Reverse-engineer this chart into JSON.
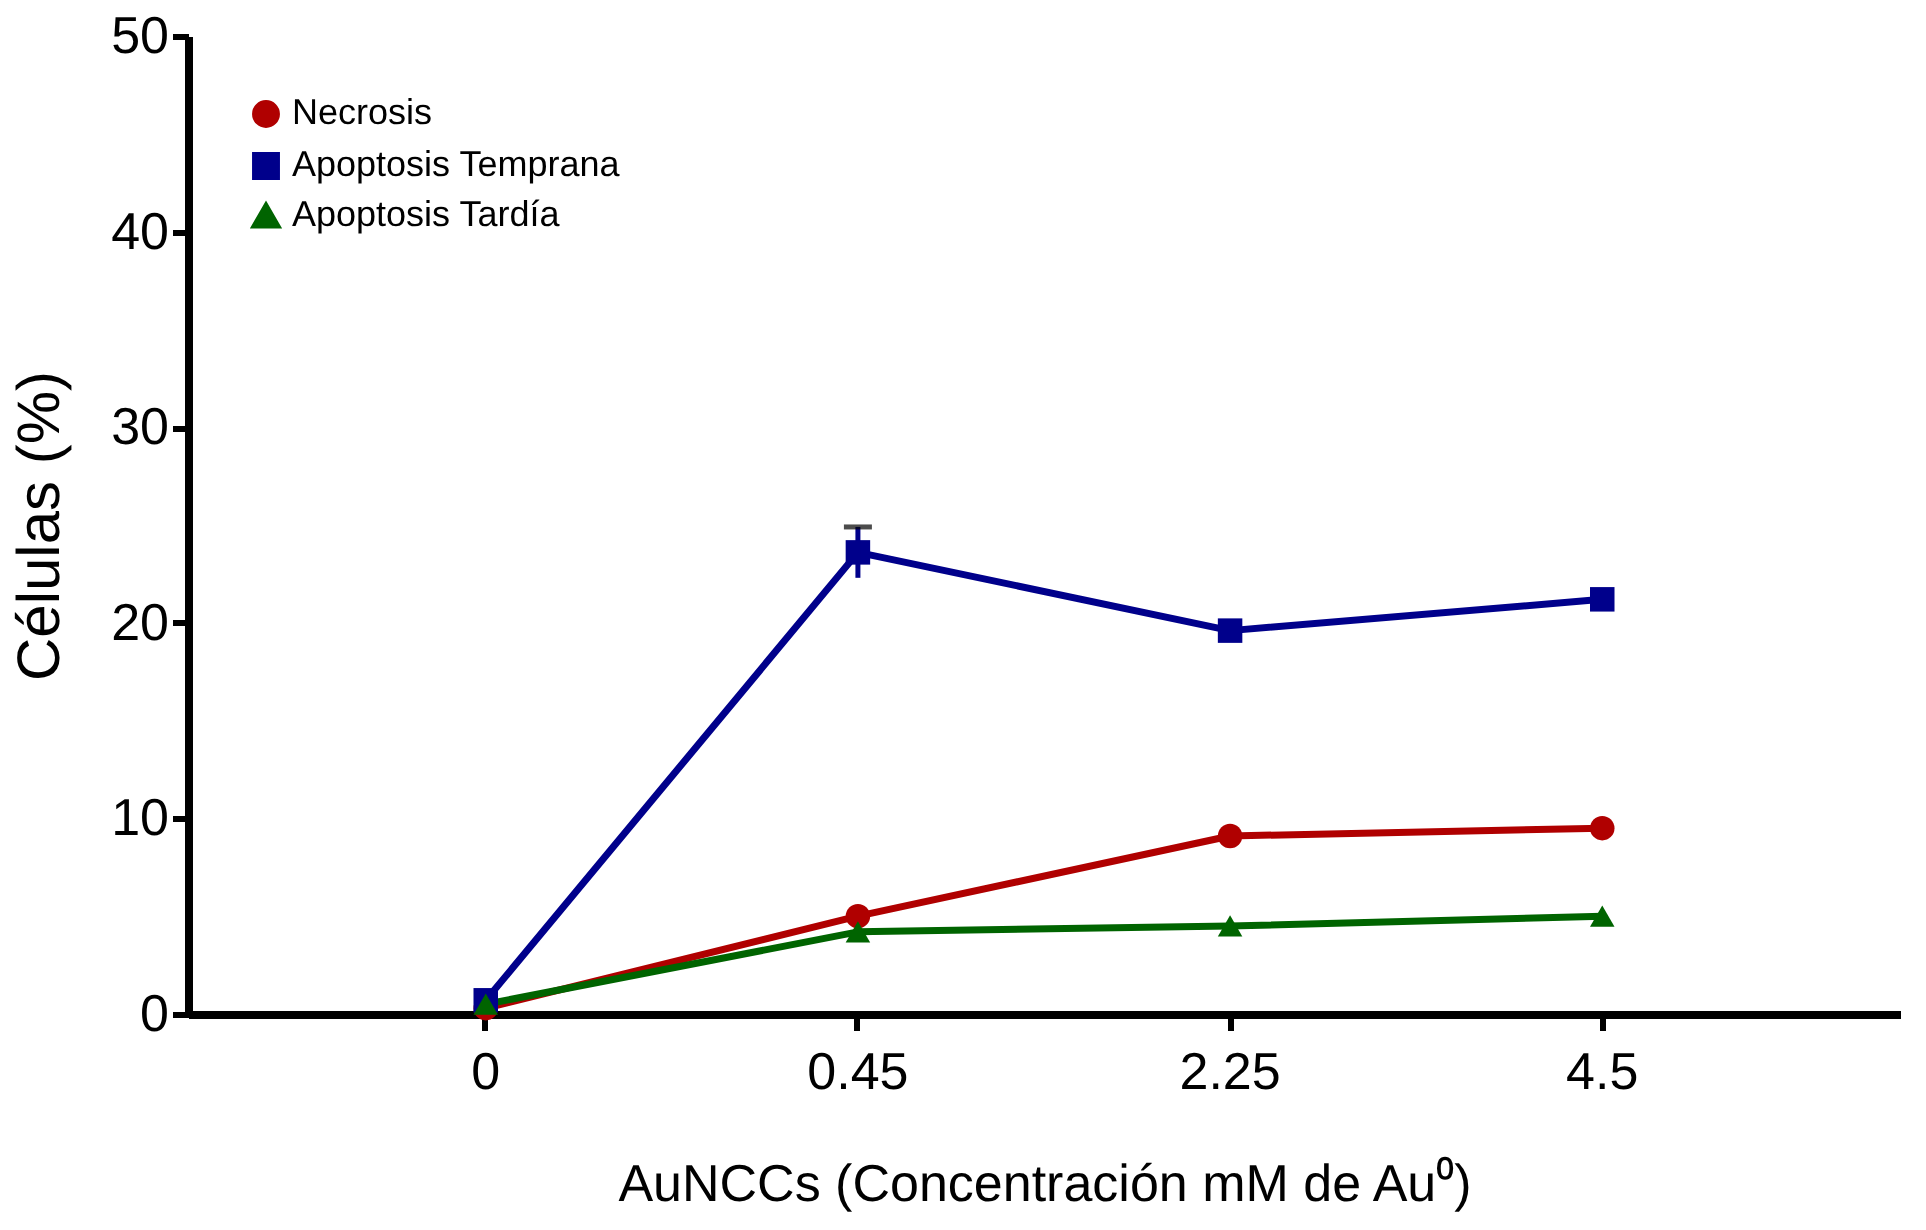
{
  "chart_data": {
    "type": "line",
    "xlabel": "AuNCCs (Concentración mM de Au⁰)",
    "ylabel": "Células (%)",
    "categories": [
      "0",
      "0.45",
      "2.25",
      "4.5"
    ],
    "series": [
      {
        "name": "Necrosis",
        "color": "#b00000",
        "marker": "circle",
        "values": [
          0.3,
          5.0,
          9.1,
          9.5
        ]
      },
      {
        "name": "Apoptosis Temprana",
        "color": "#00008b",
        "marker": "square",
        "values": [
          0.7,
          23.6,
          19.6,
          21.2
        ],
        "errors": [
          null,
          1.3,
          null,
          null
        ]
      },
      {
        "name": "Apoptosis Tardía",
        "color": "#006400",
        "marker": "triangle",
        "values": [
          0.5,
          4.2,
          4.5,
          5.0
        ]
      }
    ],
    "ylim": [
      0,
      50
    ],
    "yticks": [
      0,
      10,
      20,
      30,
      40,
      50
    ],
    "grid": false,
    "legend": "top left"
  }
}
